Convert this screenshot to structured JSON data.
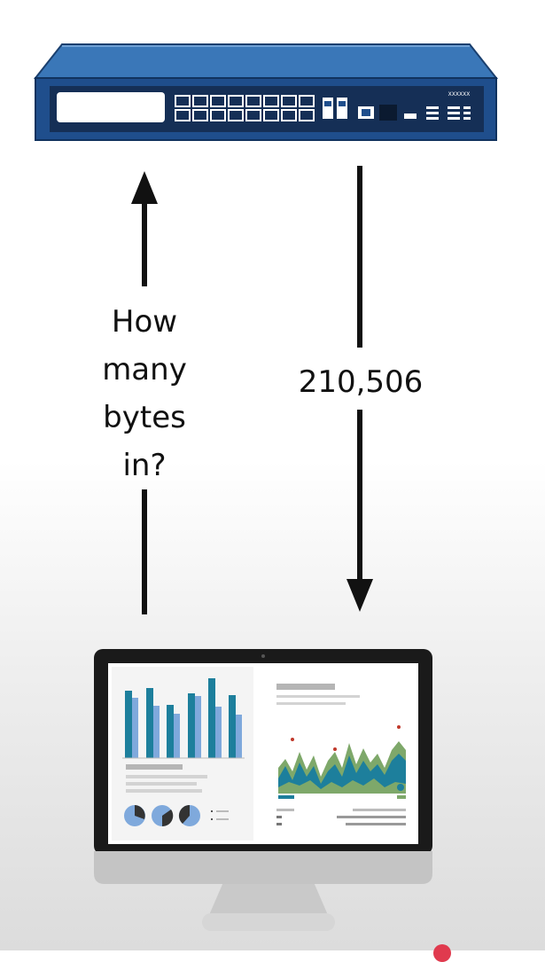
{
  "request": {
    "line1": "How",
    "line2": "many",
    "line3": "bytes",
    "line4": "in?"
  },
  "response": {
    "value": "210,506"
  },
  "switch_device": {
    "badge": "XXXXXX"
  },
  "colors": {
    "switch_body": "#1f4e8c",
    "switch_top": "#3a77b8",
    "arrow": "#111111",
    "chart_teal": "#1d7f9c",
    "chart_light_blue": "#7fa9dc",
    "chart_green": "#7ea86a"
  },
  "icons": [
    "network-switch-icon",
    "desktop-monitor-icon",
    "up-arrow-icon",
    "down-arrow-icon"
  ]
}
